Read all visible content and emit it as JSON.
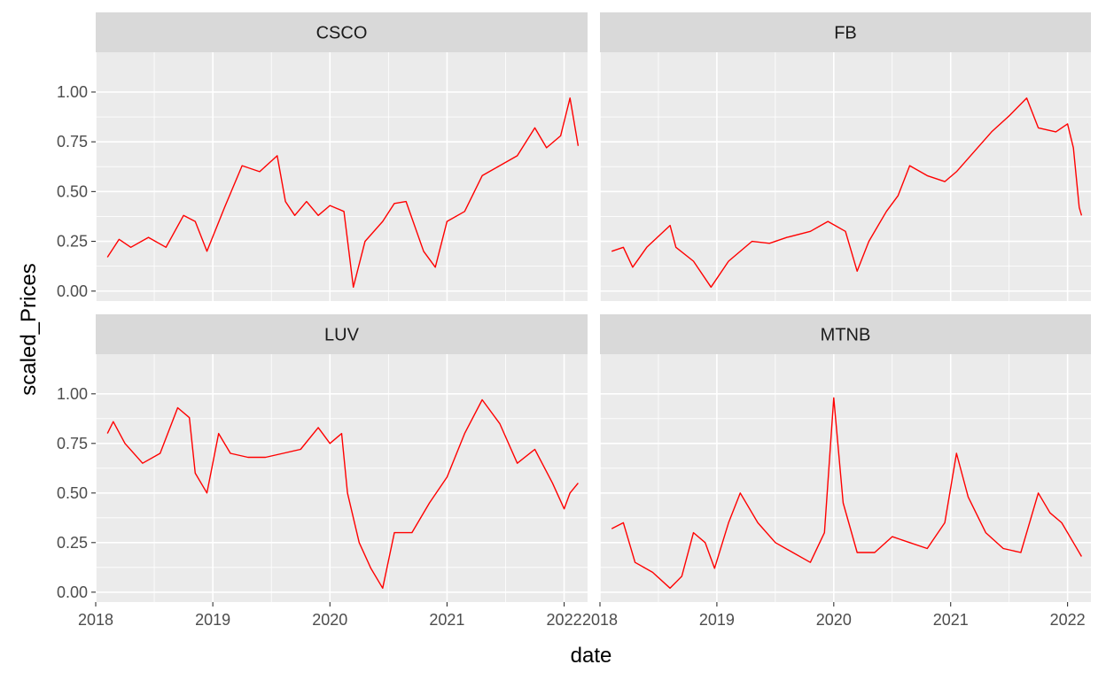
{
  "chart_data": {
    "type": "line",
    "layout": "facet_wrap 2x2",
    "xlabel": "date",
    "ylabel": "scaled_Prices",
    "xlim": [
      2018.0,
      2022.2
    ],
    "ylim": [
      -0.05,
      1.2
    ],
    "x_ticks": [
      2018,
      2019,
      2020,
      2021,
      2022
    ],
    "x_tick_labels": [
      "2018",
      "2019",
      "2020",
      "2021",
      "2022"
    ],
    "y_ticks": [
      0,
      0.25,
      0.5,
      0.75,
      1
    ],
    "y_tick_labels": [
      "0.00",
      "0.25",
      "0.50",
      "0.75",
      "1.00"
    ],
    "grid": true,
    "line_color": "#ff0000",
    "panel_background": "#ebebeb",
    "strip_background": "#d9d9d9",
    "panels": [
      {
        "title": "CSCO",
        "x": [
          2018.1,
          2018.2,
          2018.3,
          2018.45,
          2018.6,
          2018.75,
          2018.85,
          2018.95,
          2019.1,
          2019.25,
          2019.4,
          2019.55,
          2019.62,
          2019.7,
          2019.8,
          2019.9,
          2020.0,
          2020.12,
          2020.2,
          2020.3,
          2020.45,
          2020.55,
          2020.65,
          2020.8,
          2020.9,
          2021.0,
          2021.15,
          2021.3,
          2021.45,
          2021.6,
          2021.75,
          2021.85,
          2021.97,
          2022.05,
          2022.12
        ],
        "y": [
          0.17,
          0.26,
          0.22,
          0.27,
          0.22,
          0.38,
          0.35,
          0.2,
          0.42,
          0.63,
          0.6,
          0.68,
          0.45,
          0.38,
          0.45,
          0.38,
          0.43,
          0.4,
          0.02,
          0.25,
          0.35,
          0.44,
          0.45,
          0.2,
          0.12,
          0.35,
          0.4,
          0.58,
          0.63,
          0.68,
          0.82,
          0.72,
          0.78,
          0.97,
          0.73
        ]
      },
      {
        "title": "FB",
        "x": [
          2018.1,
          2018.2,
          2018.28,
          2018.4,
          2018.6,
          2018.65,
          2018.8,
          2018.95,
          2019.1,
          2019.3,
          2019.45,
          2019.6,
          2019.8,
          2019.95,
          2020.1,
          2020.2,
          2020.3,
          2020.45,
          2020.55,
          2020.65,
          2020.8,
          2020.95,
          2021.05,
          2021.2,
          2021.35,
          2021.5,
          2021.65,
          2021.75,
          2021.9,
          2022.0,
          2022.05,
          2022.1,
          2022.12
        ],
        "y": [
          0.2,
          0.22,
          0.12,
          0.22,
          0.33,
          0.22,
          0.15,
          0.02,
          0.15,
          0.25,
          0.24,
          0.27,
          0.3,
          0.35,
          0.3,
          0.1,
          0.25,
          0.4,
          0.48,
          0.63,
          0.58,
          0.55,
          0.6,
          0.7,
          0.8,
          0.88,
          0.97,
          0.82,
          0.8,
          0.84,
          0.72,
          0.42,
          0.38
        ]
      },
      {
        "title": "LUV",
        "x": [
          2018.1,
          2018.15,
          2018.25,
          2018.4,
          2018.55,
          2018.7,
          2018.8,
          2018.85,
          2018.95,
          2019.05,
          2019.15,
          2019.3,
          2019.45,
          2019.6,
          2019.75,
          2019.9,
          2020.0,
          2020.1,
          2020.15,
          2020.25,
          2020.35,
          2020.45,
          2020.55,
          2020.7,
          2020.85,
          2021.0,
          2021.15,
          2021.3,
          2021.45,
          2021.6,
          2021.75,
          2021.9,
          2022.0,
          2022.05,
          2022.12
        ],
        "y": [
          0.8,
          0.86,
          0.75,
          0.65,
          0.7,
          0.93,
          0.88,
          0.6,
          0.5,
          0.8,
          0.7,
          0.68,
          0.68,
          0.7,
          0.72,
          0.83,
          0.75,
          0.8,
          0.5,
          0.25,
          0.12,
          0.02,
          0.3,
          0.3,
          0.45,
          0.58,
          0.8,
          0.97,
          0.85,
          0.65,
          0.72,
          0.55,
          0.42,
          0.5,
          0.55
        ]
      },
      {
        "title": "MTNB",
        "x": [
          2018.1,
          2018.2,
          2018.3,
          2018.45,
          2018.6,
          2018.7,
          2018.8,
          2018.9,
          2018.98,
          2019.1,
          2019.2,
          2019.35,
          2019.5,
          2019.65,
          2019.8,
          2019.92,
          2020.0,
          2020.08,
          2020.2,
          2020.35,
          2020.5,
          2020.65,
          2020.8,
          2020.95,
          2021.05,
          2021.15,
          2021.3,
          2021.45,
          2021.6,
          2021.75,
          2021.85,
          2021.95,
          2022.05,
          2022.12
        ],
        "y": [
          0.32,
          0.35,
          0.15,
          0.1,
          0.02,
          0.08,
          0.3,
          0.25,
          0.12,
          0.35,
          0.5,
          0.35,
          0.25,
          0.2,
          0.15,
          0.3,
          0.98,
          0.45,
          0.2,
          0.2,
          0.28,
          0.25,
          0.22,
          0.35,
          0.7,
          0.48,
          0.3,
          0.22,
          0.2,
          0.5,
          0.4,
          0.35,
          0.25,
          0.18
        ]
      }
    ]
  }
}
